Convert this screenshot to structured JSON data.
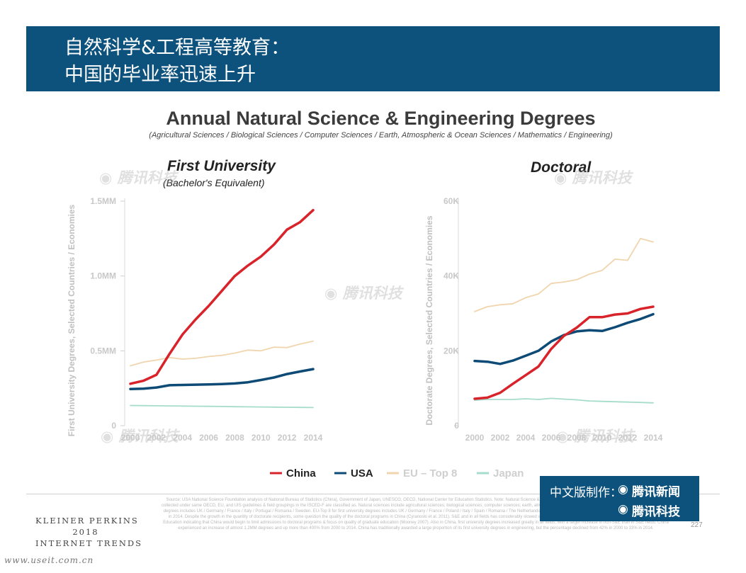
{
  "banner": {
    "title": "自然科学&工程高等教育：\n中国的毕业率迅速上升"
  },
  "header": {
    "title": "Annual Natural Science & Engineering Degrees",
    "subtitle": "(Agricultural Sciences / Biological Sciences / Computer Sciences / Earth, Atmospheric & Ocean Sciences / Mathematics / Engineering)"
  },
  "colors": {
    "banner": "#0d527c",
    "China": "#d9232a",
    "USA": "#0d4a75",
    "EU – Top 8": "#f0d5ae",
    "Japan": "#a6dccc"
  },
  "chart_data": [
    {
      "type": "line",
      "title": "First University",
      "subtitle": "(Bachelor's Equivalent)",
      "ylabel": "First University Degrees, Selected Countries / Economies",
      "xlabel": "",
      "x": [
        2000,
        2001,
        2002,
        2003,
        2004,
        2005,
        2006,
        2007,
        2008,
        2009,
        2010,
        2011,
        2012,
        2013,
        2014
      ],
      "xticks": [
        "2000",
        "2002",
        "2004",
        "2006",
        "2008",
        "2010",
        "2012",
        "2014"
      ],
      "yticks": [
        0,
        500000,
        1000000,
        1500000
      ],
      "yticklabels": [
        "0",
        "0.5MM",
        "1.0MM",
        "1.5MM"
      ],
      "ylim": [
        0,
        1500000
      ],
      "series": [
        {
          "name": "China",
          "values": [
            280000,
            300000,
            340000,
            480000,
            610000,
            710000,
            800000,
            900000,
            1000000,
            1070000,
            1130000,
            1210000,
            1310000,
            1360000,
            1440000
          ]
        },
        {
          "name": "USA",
          "values": [
            245000,
            247000,
            255000,
            270000,
            272000,
            274000,
            276000,
            278000,
            282000,
            290000,
            305000,
            322000,
            345000,
            362000,
            378000
          ]
        },
        {
          "name": "EU – Top 8",
          "values": [
            400000,
            425000,
            438000,
            455000,
            445000,
            450000,
            462000,
            470000,
            485000,
            505000,
            500000,
            525000,
            522000,
            545000,
            565000
          ]
        },
        {
          "name": "Japan",
          "values": [
            135000,
            134000,
            133000,
            132000,
            131000,
            130000,
            129000,
            128000,
            127000,
            126000,
            125000,
            124000,
            123000,
            122000,
            121000
          ]
        }
      ]
    },
    {
      "type": "line",
      "title": "Doctoral",
      "ylabel": "Doctorate Degrees, Selected Countries / Economies",
      "xlabel": "",
      "x": [
        2000,
        2001,
        2002,
        2003,
        2004,
        2005,
        2006,
        2007,
        2008,
        2009,
        2010,
        2011,
        2012,
        2013,
        2014
      ],
      "xticks": [
        "2000",
        "2002",
        "2004",
        "2006",
        "2008",
        "2010",
        "2012",
        "2014"
      ],
      "yticks": [
        0,
        20000,
        40000,
        60000
      ],
      "yticklabels": [
        "0",
        "20K",
        "40K",
        "60K"
      ],
      "ylim": [
        0,
        60000
      ],
      "series": [
        {
          "name": "China",
          "values": [
            7200,
            7500,
            8800,
            11200,
            13500,
            15800,
            20500,
            24000,
            26200,
            29000,
            29000,
            29700,
            30000,
            31200,
            31800
          ]
        },
        {
          "name": "USA",
          "values": [
            17300,
            17100,
            16500,
            17400,
            18700,
            20000,
            22500,
            24200,
            25200,
            25500,
            25300,
            26300,
            27500,
            28500,
            29800
          ]
        },
        {
          "name": "EU – Top 8",
          "values": [
            30500,
            31800,
            32300,
            32600,
            34200,
            35200,
            38000,
            38400,
            39000,
            40500,
            41500,
            44500,
            44200,
            50000,
            49100
          ]
        },
        {
          "name": "Japan",
          "values": [
            6800,
            7000,
            7000,
            7000,
            7200,
            7000,
            7300,
            7100,
            6900,
            6600,
            6500,
            6400,
            6300,
            6200,
            6100
          ]
        }
      ]
    }
  ],
  "legend": [
    {
      "label": "China"
    },
    {
      "label": "USA"
    },
    {
      "label": "EU – Top 8"
    },
    {
      "label": "Japan"
    }
  ],
  "footer": {
    "company_line1": "KLEINER PERKINS",
    "company_line2": "2018",
    "company_line3": "INTERNET TRENDS",
    "source": "Source: USA National Science Foundation analysis of National Bureau of Statistics (China), Government of Japan, UNESCO, OECD, National Center for Education Statistics. Note: Natural Science & Engineering data. Note: Data for the majority of the countries were collected under same OECD, EU, and UIS guidelines & field groupings in the ISCED-F are classified as. Natural sciences include agricultural sciences; biological sciences; computer sciences; earth, atmospheric, and ocean sciences; & mathematics. EU-Top 8 for doctoral degrees includes UK / Germany / France / Italy / Portugal / Romania / Sweden. EU-Top 8 for first university degrees includes UK / Germany / France / Poland / Italy / Spain / Romania / The Netherlands. The rate of growth in doctoral degrees from 2000 to more than 34K in 2014. Despite the growth in the quantity of doctorate recipients, some question the quality of the doctoral programs in China (Cyranoski et al. 2011). S&E and in all fields has considerably slowed starting in 2010, after an announcement by the Chinese Ministry of Education indicating that China would begin to limit admissions to doctoral programs & focus on quality of graduate education (Mooney 2007). Also in China, first university degrees increased greatly in all fields, with a larger increase in non-S&E than in S&E fields. China experienced an increase of almost 1.2MM degrees and up more than 400% from 2000 to 2014. China has traditionally awarded a large proportion of its first university degrees in engineering, but the percentage declined from 42% in 2000 to 33% in 2014.",
    "page_number": "227",
    "website": "www.useit.com.cn"
  },
  "stamp": {
    "label": "中文版制作：",
    "brand1": "腾讯新闻",
    "brand2": "腾讯科技"
  },
  "watermark": "腾讯科技"
}
